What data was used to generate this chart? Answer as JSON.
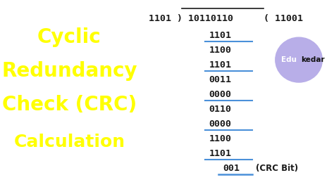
{
  "bg_left_color": "#0a1a3a",
  "bg_right_color": "#ffffff",
  "left_title_lines": [
    "Cyclic",
    "Redundancy",
    "Check (CRC)",
    "Calculation"
  ],
  "left_title_color": "#ffff00",
  "calc_underline_color": "#ffffff",
  "division_line_color": "#4a90d9",
  "rows": [
    {
      "text": "1101",
      "underline": true,
      "crc": false
    },
    {
      "text": "1100",
      "underline": false,
      "crc": false
    },
    {
      "text": "1101",
      "underline": true,
      "crc": false
    },
    {
      "text": "0011",
      "underline": false,
      "crc": false
    },
    {
      "text": "0000",
      "underline": true,
      "crc": false
    },
    {
      "text": "0110",
      "underline": false,
      "crc": false
    },
    {
      "text": "0000",
      "underline": true,
      "crc": false
    },
    {
      "text": "1100",
      "underline": false,
      "crc": false
    },
    {
      "text": "1101",
      "underline": true,
      "crc": false
    },
    {
      "text": "001",
      "underline": false,
      "crc": true
    }
  ],
  "edukedar_circle_color": "#b8aee8",
  "font_color": "#1a1a1a",
  "monospace_font": "DejaVu Sans Mono"
}
